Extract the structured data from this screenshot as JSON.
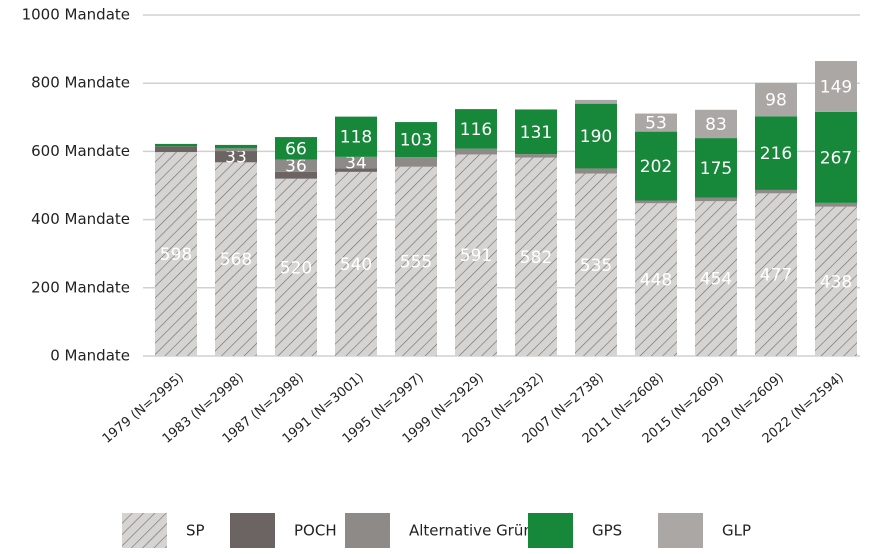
{
  "chart_data": {
    "type": "stacked_bar",
    "categories": [
      "1979 (N=2995)",
      "1983 (N=2998)",
      "1987 (N=2998)",
      "1991 (N=3001)",
      "1995 (N=2997)",
      "1999 (N=2929)",
      "2003 (N=2932)",
      "2007 (N=2738)",
      "2011 (N=2608)",
      "2015 (N=2609)",
      "2019 (N=2609)",
      "2022 (N=2594)"
    ],
    "series": [
      {
        "name": "SP",
        "color": "#d6d4d2",
        "hatch": true,
        "values": [
          598,
          568,
          520,
          540,
          555,
          591,
          582,
          535,
          448,
          454,
          477,
          438
        ]
      },
      {
        "name": "POCH",
        "color": "#6b6462",
        "values": [
          17,
          33,
          20,
          10,
          null,
          null,
          null,
          null,
          null,
          null,
          null,
          null
        ]
      },
      {
        "name": "Alternative Grüne",
        "color": "#8e8a88",
        "values": [
          null,
          8,
          36,
          34,
          28,
          17,
          10,
          15,
          8,
          10,
          10,
          11
        ]
      },
      {
        "name": "GPS",
        "color": "#17883a",
        "values": [
          7,
          10,
          66,
          118,
          103,
          116,
          131,
          190,
          202,
          175,
          216,
          267
        ]
      },
      {
        "name": "GLP",
        "color": "#aba7a4",
        "values": [
          null,
          null,
          null,
          null,
          null,
          null,
          null,
          11,
          53,
          83,
          98,
          149
        ]
      }
    ],
    "ylim": [
      0,
      1000
    ],
    "yticks": [
      {
        "value": 0,
        "label": "0 Mandate"
      },
      {
        "value": 200,
        "label": "200 Mandate"
      },
      {
        "value": 400,
        "label": "400 Mandate"
      },
      {
        "value": 600,
        "label": "600 Mandate"
      },
      {
        "value": 800,
        "label": "800 Mandate"
      },
      {
        "value": 1000,
        "label": "1000 Mandate"
      }
    ],
    "grid": true,
    "legend": "bottom"
  }
}
